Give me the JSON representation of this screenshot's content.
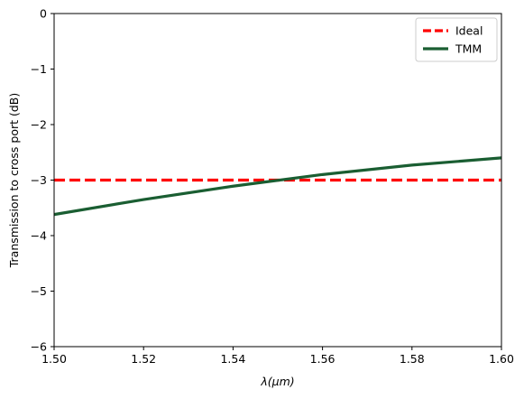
{
  "chart_data": {
    "type": "line",
    "xlabel_var": "λ",
    "xlabel_unit": "(μm)",
    "ylabel": "Transmission to cross port (dB)",
    "xlim": [
      1.5,
      1.6
    ],
    "ylim": [
      -6,
      0
    ],
    "x_ticks": [
      1.5,
      1.52,
      1.54,
      1.56,
      1.58,
      1.6
    ],
    "x_tick_labels": [
      "1.50",
      "1.52",
      "1.54",
      "1.56",
      "1.58",
      "1.60"
    ],
    "y_ticks": [
      0,
      -1,
      -2,
      -3,
      -4,
      -5,
      -6
    ],
    "y_tick_labels": [
      "0",
      "−1",
      "−2",
      "−3",
      "−4",
      "−5",
      "−6"
    ],
    "grid": false,
    "legend_position": "top-right",
    "series": [
      {
        "name": "Ideal",
        "color": "#ff0000",
        "style": "dashed",
        "x": [
          1.5,
          1.6
        ],
        "y": [
          -3.0,
          -3.0
        ]
      },
      {
        "name": "TMM",
        "color": "#1a5e32",
        "style": "solid",
        "x": [
          1.5,
          1.52,
          1.54,
          1.56,
          1.58,
          1.6
        ],
        "y": [
          -3.62,
          -3.35,
          -3.11,
          -2.9,
          -2.73,
          -2.6
        ]
      }
    ]
  }
}
